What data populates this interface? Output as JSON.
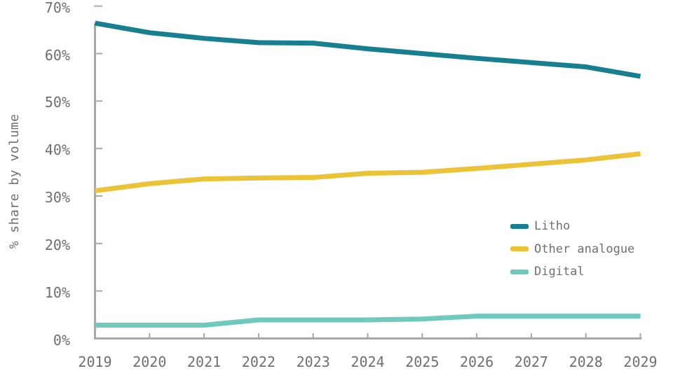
{
  "chart_data": {
    "type": "line",
    "title": "",
    "xlabel": "",
    "ylabel": "% share by volume",
    "x": [
      2019,
      2020,
      2021,
      2022,
      2023,
      2024,
      2025,
      2026,
      2027,
      2028,
      2029
    ],
    "xtick_labels": [
      "2019",
      "2020",
      "2021",
      "2022",
      "2023",
      "2024",
      "2025",
      "2026",
      "2027",
      "2028",
      "2029"
    ],
    "yticks": [
      0,
      10,
      20,
      30,
      40,
      50,
      60,
      70
    ],
    "ytick_labels": [
      "0%",
      "10%",
      "20%",
      "30%",
      "40%",
      "50%",
      "60%",
      "70%"
    ],
    "ylim": [
      0,
      70
    ],
    "grid": false,
    "legend_position": "right-middle",
    "axis_color": "#a8a8a8",
    "text_color": "#6f6f6f",
    "series": [
      {
        "name": "Litho",
        "color": "#187f90",
        "values": [
          66.4,
          64.4,
          63.2,
          62.3,
          62.2,
          61.0,
          60.0,
          59.0,
          58.1,
          57.2,
          55.2
        ]
      },
      {
        "name": "Other analogue",
        "color": "#ecc337",
        "values": [
          31.1,
          32.6,
          33.6,
          33.8,
          33.9,
          34.8,
          35.0,
          35.8,
          36.7,
          37.6,
          38.9
        ]
      },
      {
        "name": "Digital",
        "color": "#6fc9bc",
        "values": [
          2.8,
          2.8,
          2.8,
          3.9,
          3.9,
          3.9,
          4.1,
          4.7,
          4.7,
          4.7,
          4.7
        ]
      }
    ]
  }
}
